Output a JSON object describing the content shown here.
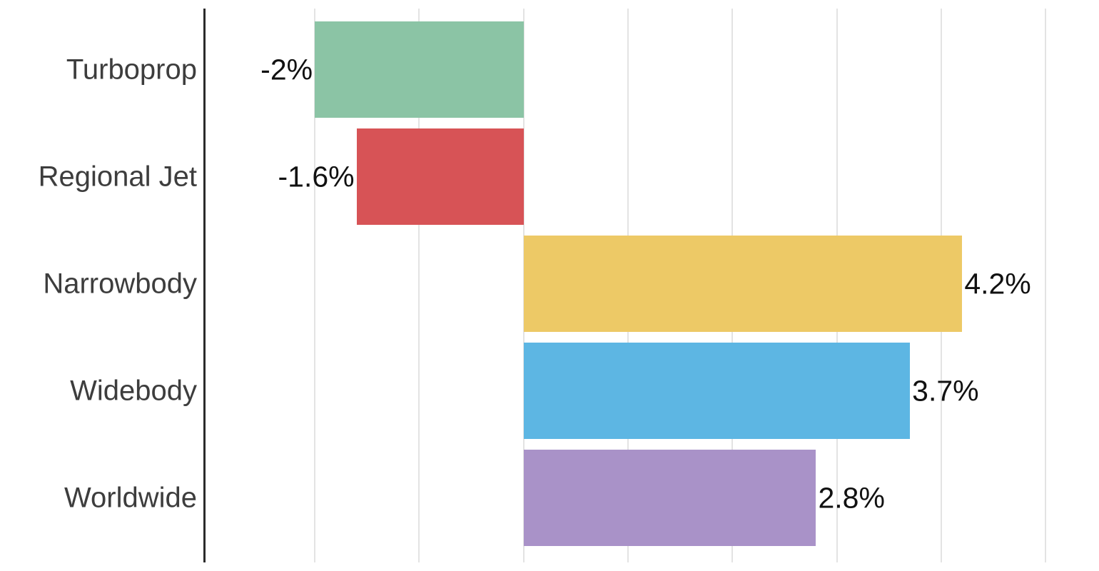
{
  "chart_data": {
    "type": "bar",
    "orientation": "horizontal",
    "title": "",
    "xlabel": "",
    "ylabel": "",
    "categories": [
      "Turboprop",
      "Regional Jet",
      "Narrowbody",
      "Widebody",
      "Worldwide"
    ],
    "values": [
      -2,
      -1.6,
      4.2,
      3.7,
      2.8
    ],
    "value_labels": [
      "-2%",
      "-1.6%",
      "4.2%",
      "3.7%",
      "2.8%"
    ],
    "bar_colors": [
      "#8bc4a5",
      "#d75356",
      "#edc966",
      "#5db6e3",
      "#a992c8"
    ],
    "xlim": [
      -3.06,
      5.51
    ],
    "gridline_values": [
      -2,
      -1,
      0,
      1,
      2,
      3,
      4,
      5
    ],
    "grid": true,
    "legend": false,
    "axis_tick_labels_visible": false,
    "colors": {
      "grid": "#e3e3e3",
      "axis": "#2b2b2b",
      "category_label": "#3d3d3d",
      "value_label": "#111111",
      "background": "#ffffff"
    }
  }
}
